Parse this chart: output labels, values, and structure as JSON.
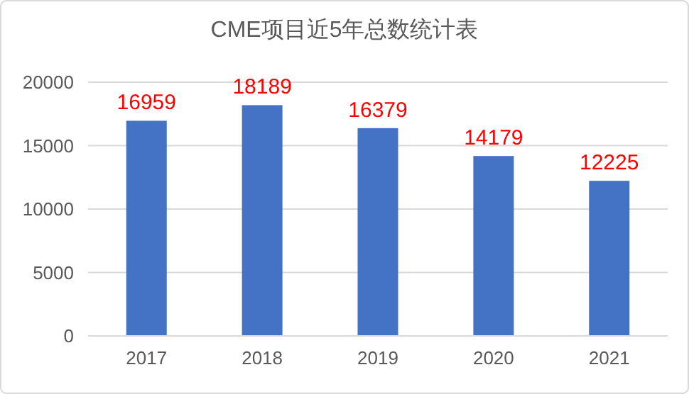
{
  "chart_data": {
    "type": "bar",
    "title": "CME项目近5年总数统计表",
    "categories": [
      "2017",
      "2018",
      "2019",
      "2020",
      "2021"
    ],
    "values": [
      16959,
      18189,
      16379,
      14179,
      12225
    ],
    "color": "#4472c4",
    "ylim": [
      0,
      20000
    ],
    "yticks": [
      0,
      5000,
      10000,
      15000,
      20000
    ],
    "grid": "y",
    "data_labels": true
  }
}
